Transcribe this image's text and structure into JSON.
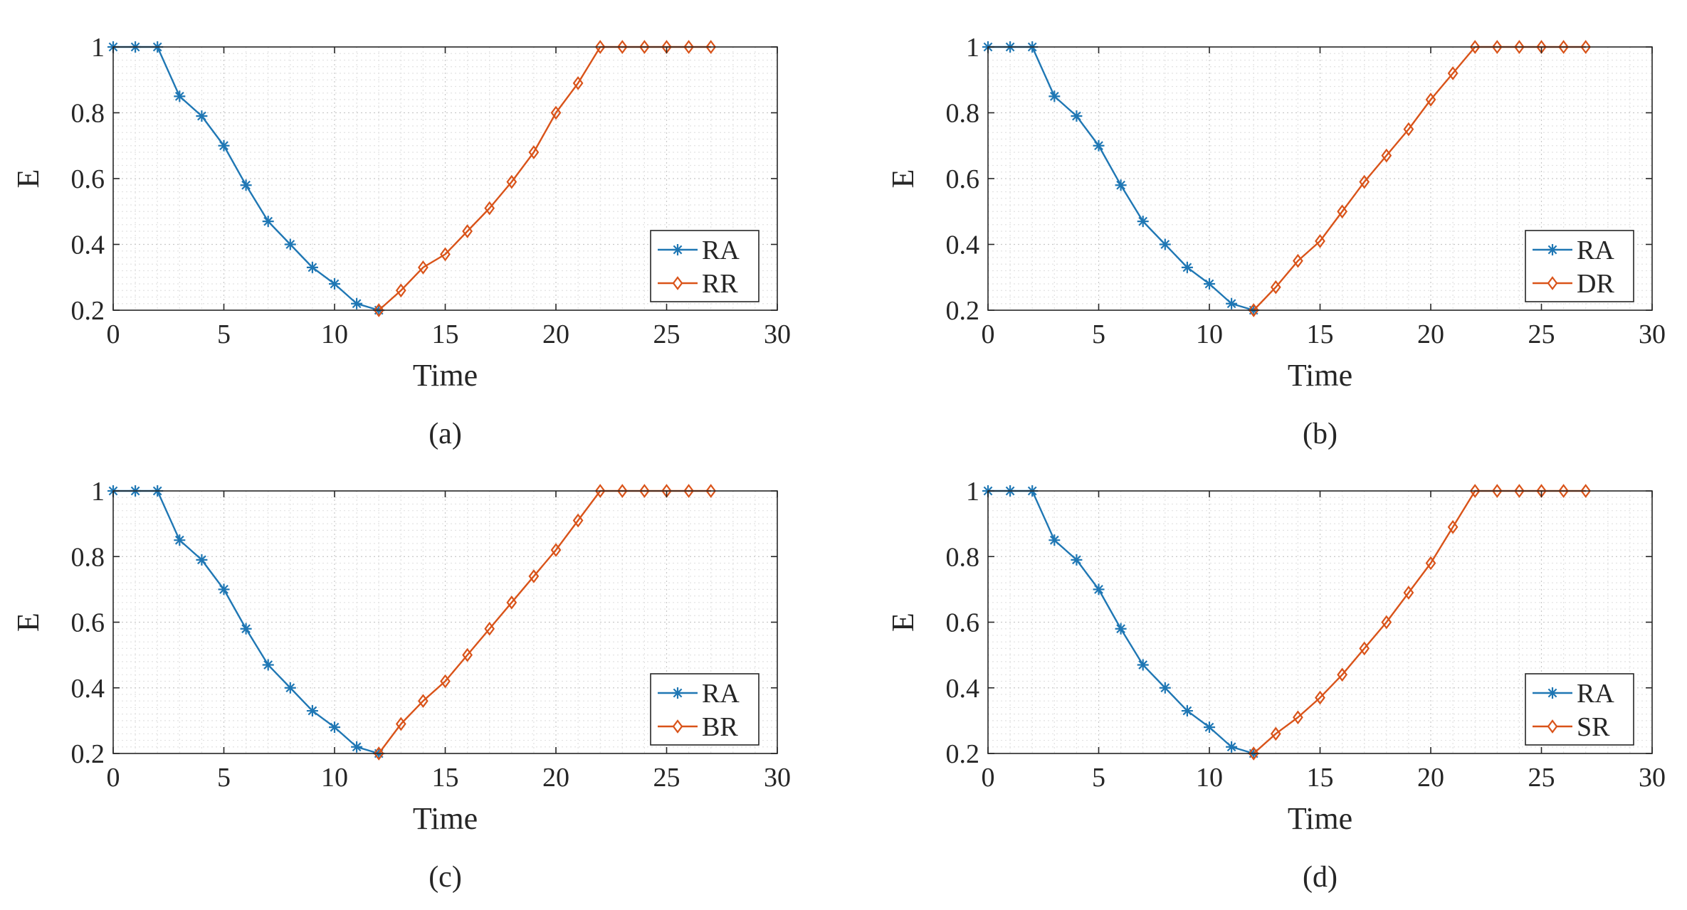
{
  "chart_data": [
    {
      "type": "line",
      "panel_label": "(a)",
      "xlabel": "Time",
      "ylabel": "E",
      "xlim": [
        0,
        30
      ],
      "ylim": [
        0.2,
        1
      ],
      "xticks": [
        "0",
        "5",
        "10",
        "15",
        "20",
        "25",
        "30"
      ],
      "yticks": [
        "0.2",
        "0.4",
        "0.6",
        "0.8",
        "1"
      ],
      "grid": true,
      "legend_position": "lower-right",
      "series": [
        {
          "name": "RA",
          "color": "#1f77b4",
          "marker": "asterisk",
          "x": [
            0,
            1,
            2,
            3,
            4,
            5,
            6,
            7,
            8,
            9,
            10,
            11,
            12
          ],
          "y": [
            1,
            1,
            1,
            0.85,
            0.79,
            0.7,
            0.58,
            0.47,
            0.4,
            0.33,
            0.28,
            0.22,
            0.2
          ]
        },
        {
          "name": "RR",
          "color": "#d95319",
          "marker": "diamond",
          "x": [
            12,
            13,
            14,
            15,
            16,
            17,
            18,
            19,
            20,
            21,
            22,
            23,
            24,
            25,
            26,
            27
          ],
          "y": [
            0.2,
            0.26,
            0.33,
            0.37,
            0.44,
            0.51,
            0.59,
            0.68,
            0.8,
            0.89,
            1,
            1,
            1,
            1,
            1,
            1
          ]
        }
      ]
    },
    {
      "type": "line",
      "panel_label": "(b)",
      "xlabel": "Time",
      "ylabel": "E",
      "xlim": [
        0,
        30
      ],
      "ylim": [
        0.2,
        1
      ],
      "xticks": [
        "0",
        "5",
        "10",
        "15",
        "20",
        "25",
        "30"
      ],
      "yticks": [
        "0.2",
        "0.4",
        "0.6",
        "0.8",
        "1"
      ],
      "grid": true,
      "legend_position": "lower-right",
      "series": [
        {
          "name": "RA",
          "color": "#1f77b4",
          "marker": "asterisk",
          "x": [
            0,
            1,
            2,
            3,
            4,
            5,
            6,
            7,
            8,
            9,
            10,
            11,
            12
          ],
          "y": [
            1,
            1,
            1,
            0.85,
            0.79,
            0.7,
            0.58,
            0.47,
            0.4,
            0.33,
            0.28,
            0.22,
            0.2
          ]
        },
        {
          "name": "DR",
          "color": "#d95319",
          "marker": "diamond",
          "x": [
            12,
            13,
            14,
            15,
            16,
            17,
            18,
            19,
            20,
            21,
            22,
            23,
            24,
            25,
            26,
            27
          ],
          "y": [
            0.2,
            0.27,
            0.35,
            0.41,
            0.5,
            0.59,
            0.67,
            0.75,
            0.84,
            0.92,
            1,
            1,
            1,
            1,
            1,
            1
          ]
        }
      ]
    },
    {
      "type": "line",
      "panel_label": "(c)",
      "xlabel": "Time",
      "ylabel": "E",
      "xlim": [
        0,
        30
      ],
      "ylim": [
        0.2,
        1
      ],
      "xticks": [
        "0",
        "5",
        "10",
        "15",
        "20",
        "25",
        "30"
      ],
      "yticks": [
        "0.2",
        "0.4",
        "0.6",
        "0.8",
        "1"
      ],
      "grid": true,
      "legend_position": "lower-right",
      "series": [
        {
          "name": "RA",
          "color": "#1f77b4",
          "marker": "asterisk",
          "x": [
            0,
            1,
            2,
            3,
            4,
            5,
            6,
            7,
            8,
            9,
            10,
            11,
            12
          ],
          "y": [
            1,
            1,
            1,
            0.85,
            0.79,
            0.7,
            0.58,
            0.47,
            0.4,
            0.33,
            0.28,
            0.22,
            0.2
          ]
        },
        {
          "name": "BR",
          "color": "#d95319",
          "marker": "diamond",
          "x": [
            12,
            13,
            14,
            15,
            16,
            17,
            18,
            19,
            20,
            21,
            22,
            23,
            24,
            25,
            26,
            27
          ],
          "y": [
            0.2,
            0.29,
            0.36,
            0.42,
            0.5,
            0.58,
            0.66,
            0.74,
            0.82,
            0.91,
            1,
            1,
            1,
            1,
            1,
            1
          ]
        }
      ]
    },
    {
      "type": "line",
      "panel_label": "(d)",
      "xlabel": "Time",
      "ylabel": "E",
      "xlim": [
        0,
        30
      ],
      "ylim": [
        0.2,
        1
      ],
      "xticks": [
        "0",
        "5",
        "10",
        "15",
        "20",
        "25",
        "30"
      ],
      "yticks": [
        "0.2",
        "0.4",
        "0.6",
        "0.8",
        "1"
      ],
      "grid": true,
      "legend_position": "lower-right",
      "series": [
        {
          "name": "RA",
          "color": "#1f77b4",
          "marker": "asterisk",
          "x": [
            0,
            1,
            2,
            3,
            4,
            5,
            6,
            7,
            8,
            9,
            10,
            11,
            12
          ],
          "y": [
            1,
            1,
            1,
            0.85,
            0.79,
            0.7,
            0.58,
            0.47,
            0.4,
            0.33,
            0.28,
            0.22,
            0.2
          ]
        },
        {
          "name": "SR",
          "color": "#d95319",
          "marker": "diamond",
          "x": [
            12,
            13,
            14,
            15,
            16,
            17,
            18,
            19,
            20,
            21,
            22,
            23,
            24,
            25,
            26,
            27
          ],
          "y": [
            0.2,
            0.26,
            0.31,
            0.37,
            0.44,
            0.52,
            0.6,
            0.69,
            0.78,
            0.89,
            1,
            1,
            1,
            1,
            1,
            1
          ]
        }
      ]
    }
  ]
}
